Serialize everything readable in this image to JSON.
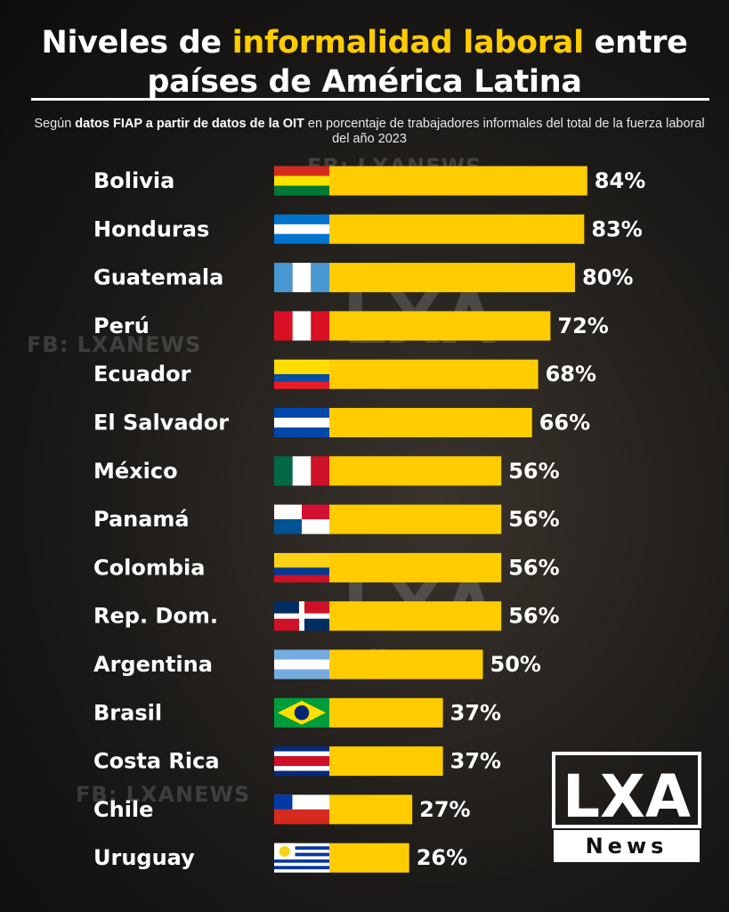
{
  "chart_data": {
    "type": "bar",
    "orientation": "horizontal",
    "title": {
      "before": "Niveles de ",
      "highlight": "informalidad laboral",
      "after": " entre",
      "line2": "países de América Latina"
    },
    "subtitle": {
      "before": "Según ",
      "bold": "datos FIAP a partir de datos de la OIT",
      "after": " en porcentaje de trabajadores informales del total de la fuerza laboral del año 2023"
    },
    "categories": [
      "Bolivia",
      "Honduras",
      "Guatemala",
      "Perú",
      "Ecuador",
      "El Salvador",
      "México",
      "Panamá",
      "Colombia",
      "Rep. Dom.",
      "Argentina",
      "Brasil",
      "Costa Rica",
      "Chile",
      "Uruguay"
    ],
    "values": [
      84,
      83,
      80,
      72,
      68,
      66,
      56,
      56,
      56,
      56,
      50,
      37,
      37,
      27,
      26
    ],
    "value_labels": [
      "84%",
      "83%",
      "80%",
      "72%",
      "68%",
      "66%",
      "56%",
      "56%",
      "56%",
      "56%",
      "50%",
      "37%",
      "37%",
      "27%",
      "26%"
    ],
    "color": "#ffcc00"
  },
  "watermarks": {
    "social": "FB: LXANEWS",
    "logo_top": "LXA",
    "logo_bottom": "News"
  }
}
